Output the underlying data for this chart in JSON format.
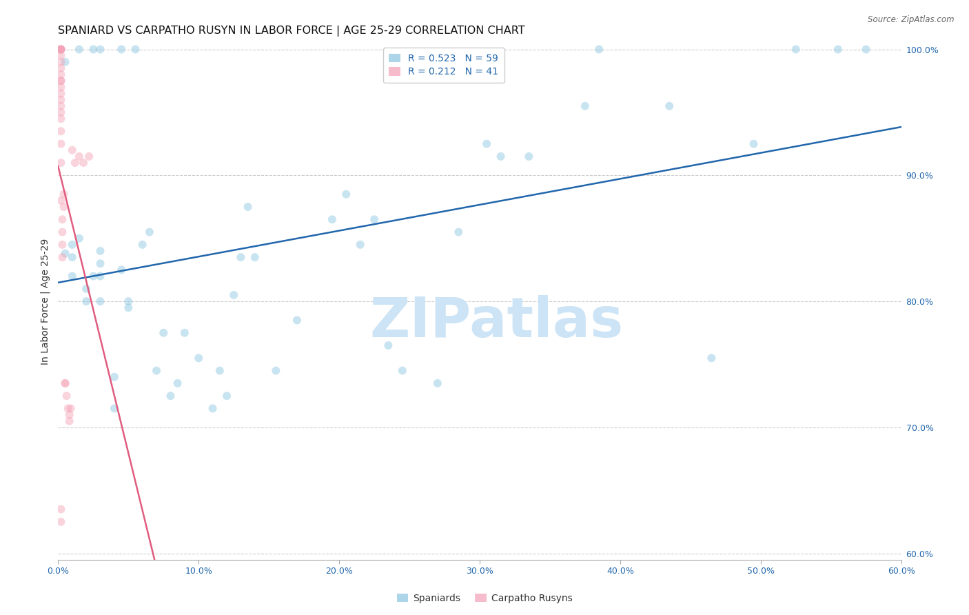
{
  "title": "SPANIARD VS CARPATHO RUSYN IN LABOR FORCE | AGE 25-29 CORRELATION CHART",
  "source": "Source: ZipAtlas.com",
  "ylabel": "In Labor Force | Age 25-29",
  "xlim": [
    0.0,
    0.6
  ],
  "ylim": [
    0.595,
    1.005
  ],
  "xticks": [
    0.0,
    0.1,
    0.2,
    0.3,
    0.4,
    0.5,
    0.6
  ],
  "yticks": [
    0.6,
    0.7,
    0.8,
    0.9,
    1.0
  ],
  "xtick_labels": [
    "0.0%",
    "10.0%",
    "20.0%",
    "30.0%",
    "40.0%",
    "50.0%",
    "60.0%"
  ],
  "ytick_labels": [
    "60.0%",
    "70.0%",
    "80.0%",
    "90.0%",
    "100.0%"
  ],
  "blue_color": "#89c4e1",
  "pink_color": "#f4a0b5",
  "blue_line_color": "#2166ac",
  "pink_line_color": "#e05c7e",
  "blue_tick_color": "#2166ac",
  "blue_R": 0.523,
  "blue_N": 59,
  "pink_R": 0.212,
  "pink_N": 41,
  "blue_label": "Spaniards",
  "pink_label": "Carpatho Rusyns",
  "spaniard_x": [
    0.005,
    0.005,
    0.01,
    0.01,
    0.01,
    0.015,
    0.015,
    0.02,
    0.02,
    0.025,
    0.025,
    0.03,
    0.03,
    0.03,
    0.03,
    0.03,
    0.04,
    0.04,
    0.045,
    0.045,
    0.05,
    0.05,
    0.055,
    0.06,
    0.065,
    0.07,
    0.075,
    0.08,
    0.085,
    0.09,
    0.1,
    0.11,
    0.115,
    0.12,
    0.125,
    0.13,
    0.135,
    0.14,
    0.155,
    0.17,
    0.195,
    0.205,
    0.215,
    0.225,
    0.235,
    0.245,
    0.27,
    0.285,
    0.305,
    0.315,
    0.335,
    0.375,
    0.385,
    0.435,
    0.465,
    0.495,
    0.525,
    0.555,
    0.575
  ],
  "spaniard_y": [
    0.838,
    0.99,
    0.82,
    0.835,
    0.845,
    0.85,
    1.0,
    0.8,
    0.81,
    0.82,
    1.0,
    0.8,
    0.82,
    0.83,
    0.84,
    1.0,
    0.715,
    0.74,
    0.825,
    1.0,
    0.795,
    0.8,
    1.0,
    0.845,
    0.855,
    0.745,
    0.775,
    0.725,
    0.735,
    0.775,
    0.755,
    0.715,
    0.745,
    0.725,
    0.805,
    0.835,
    0.875,
    0.835,
    0.745,
    0.785,
    0.865,
    0.885,
    0.845,
    0.865,
    0.765,
    0.745,
    0.735,
    0.855,
    0.925,
    0.915,
    0.915,
    0.955,
    1.0,
    0.955,
    0.755,
    0.925,
    1.0,
    1.0,
    1.0
  ],
  "rusyn_x": [
    0.002,
    0.002,
    0.002,
    0.002,
    0.002,
    0.002,
    0.002,
    0.002,
    0.002,
    0.002,
    0.002,
    0.002,
    0.002,
    0.002,
    0.002,
    0.002,
    0.002,
    0.002,
    0.002,
    0.002,
    0.002,
    0.002,
    0.002,
    0.003,
    0.003,
    0.003,
    0.003,
    0.004,
    0.004,
    0.005,
    0.005,
    0.006,
    0.007,
    0.008,
    0.008,
    0.009,
    0.01,
    0.012,
    0.015,
    0.018,
    0.022
  ],
  "rusyn_y": [
    0.625,
    0.635,
    0.88,
    0.91,
    0.925,
    0.935,
    0.945,
    0.95,
    0.955,
    0.96,
    0.965,
    0.97,
    0.975,
    0.975,
    0.98,
    0.985,
    0.99,
    0.995,
    1.0,
    1.0,
    1.0,
    1.0,
    1.0,
    0.835,
    0.845,
    0.855,
    0.865,
    0.875,
    0.885,
    0.735,
    0.735,
    0.725,
    0.715,
    0.705,
    0.71,
    0.715,
    0.92,
    0.91,
    0.915,
    0.91,
    0.915
  ],
  "background_color": "#ffffff",
  "grid_color": "#cccccc",
  "watermark_text": "ZIPatlas",
  "watermark_color": "#cce4f5",
  "title_fontsize": 11.5,
  "axis_label_fontsize": 10,
  "tick_fontsize": 9,
  "legend_fontsize": 10,
  "marker_size": 75,
  "marker_alpha": 0.45,
  "line_width": 1.8
}
